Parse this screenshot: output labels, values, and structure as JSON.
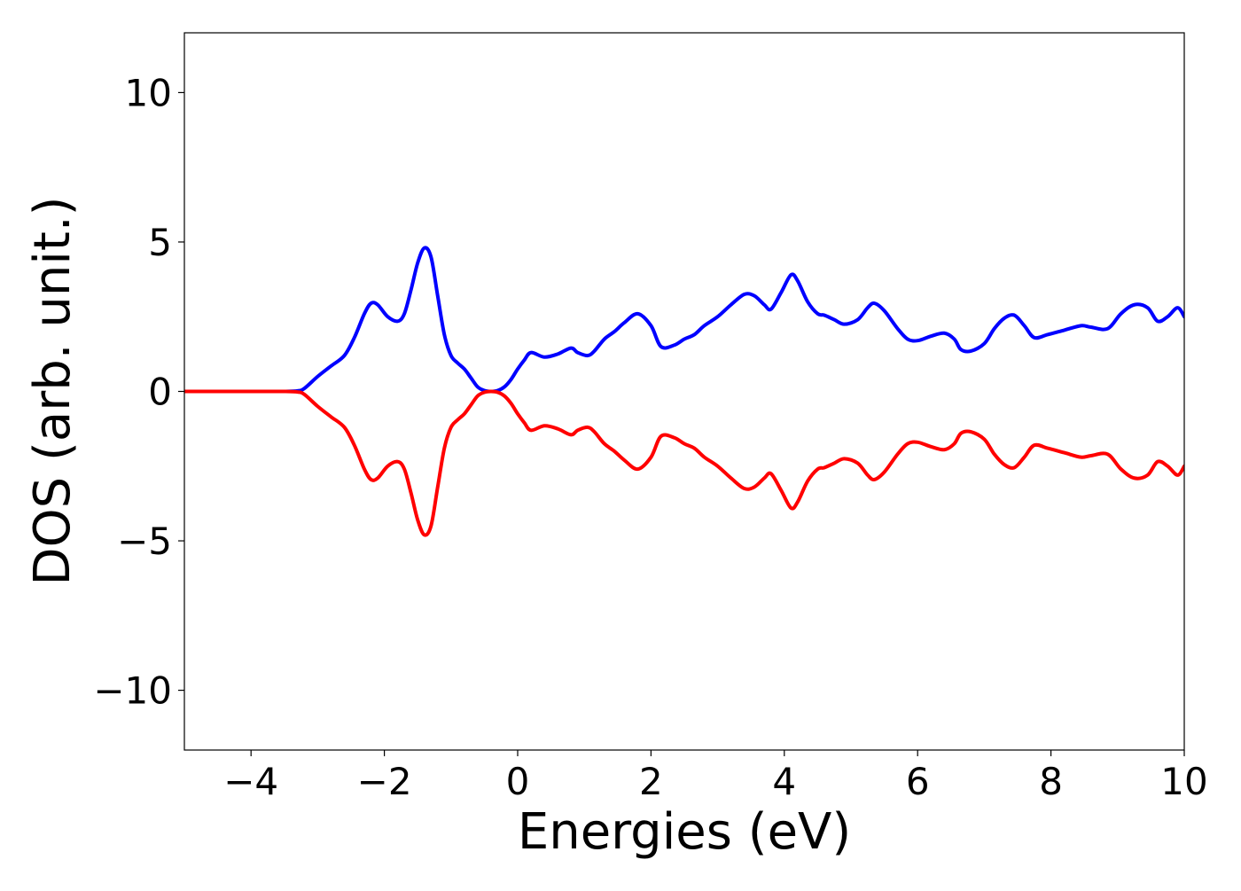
{
  "chart_data": {
    "type": "line",
    "title": "",
    "xlabel": "Energies (eV)",
    "ylabel": "DOS (arb. unit.)",
    "xlim": [
      -5,
      10
    ],
    "ylim": [
      -12,
      12
    ],
    "xticks": [
      -4,
      -2,
      0,
      2,
      4,
      6,
      8,
      10
    ],
    "yticks": [
      -10,
      -5,
      0,
      5,
      10
    ],
    "xtick_labels": [
      "−4",
      "−2",
      "0",
      "2",
      "4",
      "6",
      "8",
      "10"
    ],
    "ytick_labels": [
      "−10",
      "−5",
      "0",
      "5",
      "10"
    ],
    "grid": false,
    "legend": "none",
    "x": [
      -5.0,
      -4.0,
      -3.5,
      -3.3,
      -3.2,
      -3.0,
      -2.8,
      -2.6,
      -2.45,
      -2.3,
      -2.2,
      -2.1,
      -1.95,
      -1.8,
      -1.7,
      -1.6,
      -1.5,
      -1.4,
      -1.3,
      -1.2,
      -1.1,
      -1.0,
      -0.9,
      -0.8,
      -0.7,
      -0.6,
      -0.5,
      -0.4,
      -0.3,
      -0.2,
      -0.1,
      0.0,
      0.1,
      0.2,
      0.4,
      0.6,
      0.8,
      0.9,
      1.05,
      1.15,
      1.3,
      1.45,
      1.6,
      1.8,
      2.0,
      2.15,
      2.35,
      2.5,
      2.65,
      2.8,
      3.0,
      3.2,
      3.4,
      3.55,
      3.7,
      3.8,
      3.95,
      4.1,
      4.2,
      4.35,
      4.5,
      4.6,
      4.75,
      4.9,
      5.1,
      5.25,
      5.35,
      5.5,
      5.7,
      5.85,
      6.0,
      6.2,
      6.4,
      6.55,
      6.65,
      6.8,
      7.0,
      7.15,
      7.3,
      7.45,
      7.6,
      7.75,
      7.95,
      8.2,
      8.45,
      8.6,
      8.85,
      9.05,
      9.25,
      9.45,
      9.6,
      9.75,
      9.9,
      10.0
    ],
    "series": [
      {
        "color": "#0000ff",
        "values": [
          0.0,
          0.0,
          0.0,
          0.02,
          0.1,
          0.5,
          0.85,
          1.2,
          1.8,
          2.6,
          2.95,
          2.9,
          2.5,
          2.35,
          2.6,
          3.4,
          4.3,
          4.8,
          4.5,
          3.2,
          1.9,
          1.2,
          0.95,
          0.75,
          0.45,
          0.15,
          0.03,
          0.0,
          0.03,
          0.15,
          0.4,
          0.75,
          1.05,
          1.3,
          1.15,
          1.25,
          1.45,
          1.3,
          1.2,
          1.35,
          1.75,
          2.0,
          2.3,
          2.6,
          2.2,
          1.5,
          1.55,
          1.75,
          1.9,
          2.2,
          2.5,
          2.9,
          3.25,
          3.2,
          2.9,
          2.75,
          3.3,
          3.9,
          3.7,
          3.0,
          2.6,
          2.55,
          2.4,
          2.25,
          2.4,
          2.8,
          2.95,
          2.7,
          2.1,
          1.75,
          1.7,
          1.85,
          1.95,
          1.75,
          1.4,
          1.35,
          1.6,
          2.1,
          2.45,
          2.55,
          2.2,
          1.8,
          1.9,
          2.05,
          2.2,
          2.15,
          2.1,
          2.6,
          2.9,
          2.8,
          2.35,
          2.5,
          2.8,
          2.5
        ]
      },
      {
        "color": "#ff0000",
        "values": [
          0.0,
          0.0,
          0.0,
          -0.02,
          -0.1,
          -0.5,
          -0.85,
          -1.2,
          -1.8,
          -2.6,
          -2.95,
          -2.9,
          -2.5,
          -2.35,
          -2.6,
          -3.4,
          -4.3,
          -4.8,
          -4.5,
          -3.2,
          -1.9,
          -1.2,
          -0.95,
          -0.75,
          -0.45,
          -0.15,
          -0.03,
          0.0,
          -0.03,
          -0.15,
          -0.4,
          -0.75,
          -1.05,
          -1.3,
          -1.15,
          -1.25,
          -1.45,
          -1.3,
          -1.2,
          -1.35,
          -1.75,
          -2.0,
          -2.3,
          -2.6,
          -2.2,
          -1.5,
          -1.55,
          -1.75,
          -1.9,
          -2.2,
          -2.5,
          -2.9,
          -3.25,
          -3.2,
          -2.9,
          -2.75,
          -3.3,
          -3.9,
          -3.7,
          -3.0,
          -2.6,
          -2.55,
          -2.4,
          -2.25,
          -2.4,
          -2.8,
          -2.95,
          -2.7,
          -2.1,
          -1.75,
          -1.7,
          -1.85,
          -1.95,
          -1.75,
          -1.4,
          -1.35,
          -1.6,
          -2.1,
          -2.45,
          -2.55,
          -2.2,
          -1.8,
          -1.9,
          -2.05,
          -2.2,
          -2.15,
          -2.1,
          -2.6,
          -2.9,
          -2.8,
          -2.35,
          -2.5,
          -2.8,
          -2.5
        ]
      }
    ]
  }
}
